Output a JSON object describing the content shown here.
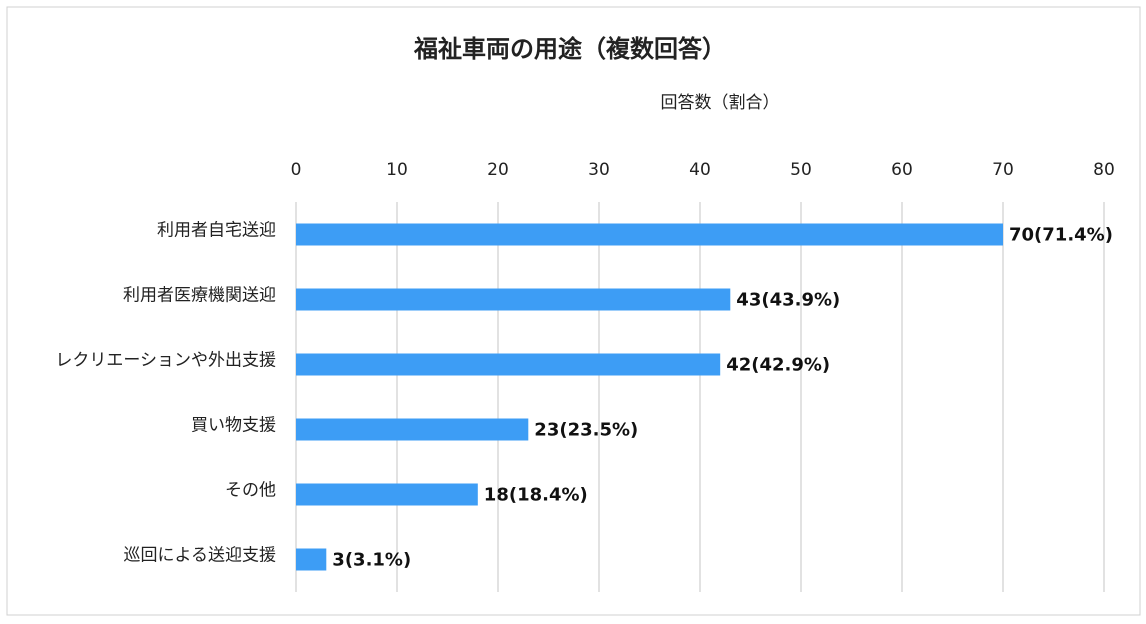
{
  "chart_data": {
    "type": "bar",
    "orientation": "horizontal",
    "title": "福祉車両の用途（複数回答）",
    "x_axis_title": "回答数（割合）",
    "categories": [
      "利用者自宅送迎",
      "利用者医療機関送迎",
      "レクリエーションや外出支援",
      "買い物支援",
      "その他",
      "巡回による送迎支援"
    ],
    "values": [
      70,
      43,
      42,
      23,
      18,
      3
    ],
    "value_labels": [
      "70(71.4%)",
      "43(43.9%)",
      "42(42.9%)",
      "23(23.5%)",
      "18(18.4%)",
      "3(3.1%)"
    ],
    "color": "#3d9df5",
    "xlim": [
      0,
      80
    ],
    "xticks": [
      0,
      10,
      20,
      30,
      40,
      50,
      60,
      70,
      80
    ],
    "grid": true
  }
}
